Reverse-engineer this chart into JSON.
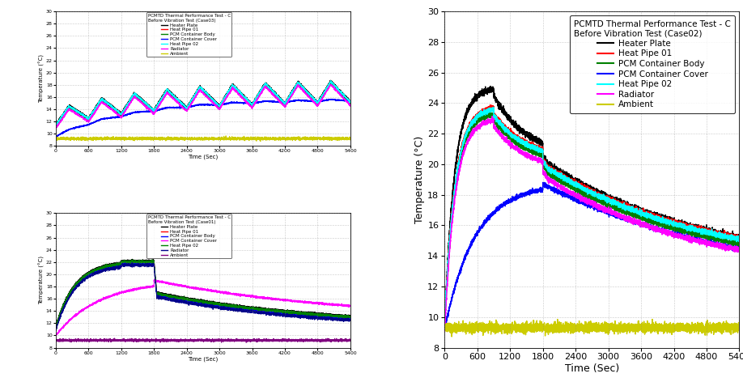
{
  "case03": {
    "title_line1": "PCMTD Thermal Performance Test - C",
    "title_line2": "Before Vibration Test (Case03)",
    "xlim": [
      0,
      5400
    ],
    "ylim": [
      8,
      30
    ],
    "yticks": [
      8,
      10,
      12,
      14,
      16,
      18,
      20,
      22,
      24,
      26,
      28,
      30
    ],
    "xticks": [
      0,
      600,
      1200,
      1800,
      2400,
      3000,
      3600,
      4200,
      4800,
      5400
    ],
    "colors": [
      "black",
      "red",
      "green",
      "blue",
      "cyan",
      "magenta",
      "#cccc00"
    ]
  },
  "case01": {
    "title_line1": "PCMTD Thermal Performance Test - C",
    "title_line2": "Before Vibration Test (Case01)",
    "xlim": [
      0,
      5400
    ],
    "ylim": [
      8,
      30
    ],
    "yticks": [
      8,
      10,
      12,
      14,
      16,
      18,
      20,
      22,
      24,
      26,
      28,
      30
    ],
    "xticks": [
      0,
      600,
      1200,
      1800,
      2400,
      3000,
      3600,
      4200,
      4800,
      5400
    ],
    "colors": [
      "black",
      "red",
      "blue",
      "magenta",
      "green",
      "#00008B",
      "purple"
    ]
  },
  "case02": {
    "title_line1": "PCMTD Thermal Performance Test - C",
    "title_line2": "Before Vibration Test (Case02)",
    "xlim": [
      0,
      5400
    ],
    "ylim": [
      8,
      30
    ],
    "yticks": [
      8,
      10,
      12,
      14,
      16,
      18,
      20,
      22,
      24,
      26,
      28,
      30
    ],
    "xticks": [
      0,
      600,
      1200,
      1800,
      2400,
      3000,
      3600,
      4200,
      4800,
      5400
    ],
    "colors": [
      "black",
      "red",
      "green",
      "blue",
      "cyan",
      "magenta",
      "#cccc00"
    ]
  },
  "legend_labels": [
    "Heater Plate",
    "Heat Pipe 01",
    "PCM Container Body",
    "PCM Container Cover",
    "Heat Pipe 02",
    "Radiator",
    "Ambient"
  ],
  "xlabel": "Time (Sec)",
  "ylabel": "Temperature (°C)"
}
